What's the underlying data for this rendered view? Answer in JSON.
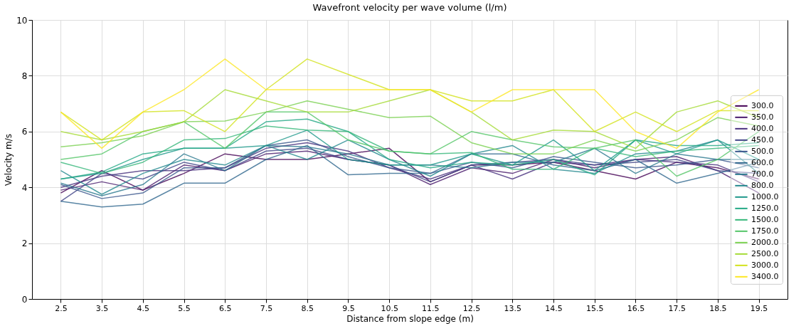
{
  "chart_data": {
    "type": "line",
    "title": "Wavefront velocity per wave volume (l/m)",
    "xlabel": "Distance from slope edge (m)",
    "ylabel": "Velocity m/s",
    "x": [
      2.5,
      3.5,
      4.5,
      5.5,
      6.5,
      7.5,
      8.5,
      9.5,
      10.5,
      11.5,
      12.5,
      13.5,
      14.5,
      15.5,
      16.5,
      17.5,
      18.5,
      19.5
    ],
    "xlim": [
      1.8,
      20.2
    ],
    "xticks": [
      2.5,
      3.5,
      4.5,
      5.5,
      6.5,
      7.5,
      8.5,
      9.5,
      10.5,
      11.5,
      12.5,
      13.5,
      14.5,
      15.5,
      16.5,
      17.5,
      18.5,
      19.5
    ],
    "ylim": [
      0,
      10
    ],
    "yticks": [
      0,
      2,
      4,
      6,
      8,
      10
    ],
    "grid": true,
    "legend": "right",
    "line_style": "solid",
    "series": [
      {
        "name": "300.0",
        "color": "#440154",
        "values": [
          3.8,
          4.6,
          3.9,
          4.5,
          5.2,
          5.0,
          5.0,
          5.2,
          5.4,
          4.2,
          4.8,
          4.8,
          4.9,
          4.6,
          4.3,
          4.9,
          4.7,
          4.3
        ]
      },
      {
        "name": "350.0",
        "color": "#481a6c",
        "values": [
          3.9,
          4.2,
          3.9,
          4.8,
          4.6,
          5.2,
          5.3,
          5.0,
          4.8,
          4.1,
          4.7,
          4.5,
          5.0,
          4.7,
          5.0,
          5.1,
          4.6,
          3.8
        ]
      },
      {
        "name": "400.0",
        "color": "#472f7d",
        "values": [
          4.0,
          4.4,
          4.6,
          4.6,
          4.7,
          5.4,
          5.6,
          5.3,
          4.7,
          4.3,
          4.8,
          4.3,
          4.9,
          4.8,
          5.0,
          4.9,
          4.8,
          4.2
        ]
      },
      {
        "name": "450.0",
        "color": "#414487",
        "values": [
          3.5,
          4.5,
          4.3,
          4.9,
          4.6,
          5.3,
          5.4,
          5.0,
          4.8,
          4.2,
          4.8,
          4.9,
          5.0,
          4.8,
          4.9,
          5.0,
          4.6,
          4.5
        ]
      },
      {
        "name": "500.0",
        "color": "#39568c",
        "values": [
          4.1,
          3.6,
          3.8,
          4.7,
          4.7,
          5.5,
          5.7,
          5.1,
          4.7,
          4.5,
          4.9,
          4.7,
          5.1,
          4.9,
          4.7,
          4.8,
          5.0,
          4.7
        ]
      },
      {
        "name": "600.0",
        "color": "#31688e",
        "values": [
          3.5,
          3.3,
          3.4,
          4.15,
          4.15,
          5.0,
          5.5,
          4.45,
          4.5,
          4.5,
          5.2,
          5.2,
          4.8,
          4.6,
          5.0,
          4.15,
          4.5,
          4.9
        ]
      },
      {
        "name": "700.0",
        "color": "#2a788e",
        "values": [
          4.15,
          3.7,
          4.1,
          5.2,
          4.6,
          5.5,
          5.45,
          5.2,
          4.8,
          4.8,
          4.7,
          4.9,
          4.9,
          5.4,
          4.5,
          5.2,
          5.0,
          5.0
        ]
      },
      {
        "name": "800.0",
        "color": "#23888e",
        "values": [
          4.6,
          3.75,
          4.5,
          5.0,
          4.8,
          5.5,
          5.0,
          5.7,
          5.0,
          4.4,
          5.2,
          5.5,
          4.65,
          4.5,
          5.2,
          5.3,
          5.7,
          4.5
        ]
      },
      {
        "name": "1000.0",
        "color": "#1f988b",
        "values": [
          4.3,
          4.5,
          5.0,
          5.4,
          5.4,
          5.5,
          6.05,
          5.0,
          4.8,
          4.8,
          5.2,
          4.8,
          5.7,
          4.6,
          5.7,
          5.2,
          5.7,
          5.0
        ]
      },
      {
        "name": "1250.0",
        "color": "#22a884",
        "values": [
          4.3,
          4.55,
          5.2,
          5.4,
          5.4,
          6.35,
          6.45,
          6.0,
          5.0,
          4.7,
          4.9,
          4.8,
          5.0,
          4.45,
          5.7,
          5.5,
          5.5,
          5.6
        ]
      },
      {
        "name": "1500.0",
        "color": "#35b779",
        "values": [
          4.9,
          4.5,
          4.9,
          5.7,
          5.75,
          6.2,
          6.05,
          6.0,
          5.3,
          5.2,
          5.25,
          4.65,
          4.65,
          5.4,
          5.1,
          5.3,
          5.4,
          5.5
        ]
      },
      {
        "name": "1750.0",
        "color": "#54c568",
        "values": [
          5.0,
          5.2,
          6.0,
          6.35,
          5.4,
          6.7,
          6.7,
          5.7,
          5.3,
          5.2,
          6.0,
          5.7,
          5.45,
          5.4,
          5.7,
          4.4,
          5.0,
          6.0
        ]
      },
      {
        "name": "2000.0",
        "color": "#7ad151",
        "values": [
          5.45,
          5.6,
          5.85,
          6.35,
          6.38,
          6.7,
          7.1,
          6.8,
          6.5,
          6.55,
          5.6,
          5.2,
          5.2,
          5.7,
          5.3,
          5.7,
          6.5,
          6.2
        ]
      },
      {
        "name": "2500.0",
        "color": "#a5db36",
        "values": [
          6.0,
          5.7,
          6.0,
          6.35,
          7.5,
          7.1,
          6.7,
          6.7,
          7.1,
          7.5,
          6.7,
          5.7,
          6.05,
          6.0,
          5.4,
          6.7,
          7.1,
          6.5
        ]
      },
      {
        "name": "3000.0",
        "color": "#d2e21b",
        "values": [
          6.7,
          5.7,
          6.7,
          6.75,
          6.0,
          7.5,
          8.6,
          8.05,
          7.5,
          7.5,
          7.1,
          7.1,
          7.5,
          6.0,
          6.7,
          6.0,
          6.75,
          6.75
        ]
      },
      {
        "name": "3400.0",
        "color": "#fde725",
        "values": [
          6.7,
          5.4,
          6.7,
          7.5,
          8.6,
          7.5,
          7.5,
          7.5,
          7.5,
          7.5,
          6.7,
          7.5,
          7.5,
          7.5,
          6.0,
          5.4,
          6.7,
          7.5
        ]
      }
    ]
  }
}
